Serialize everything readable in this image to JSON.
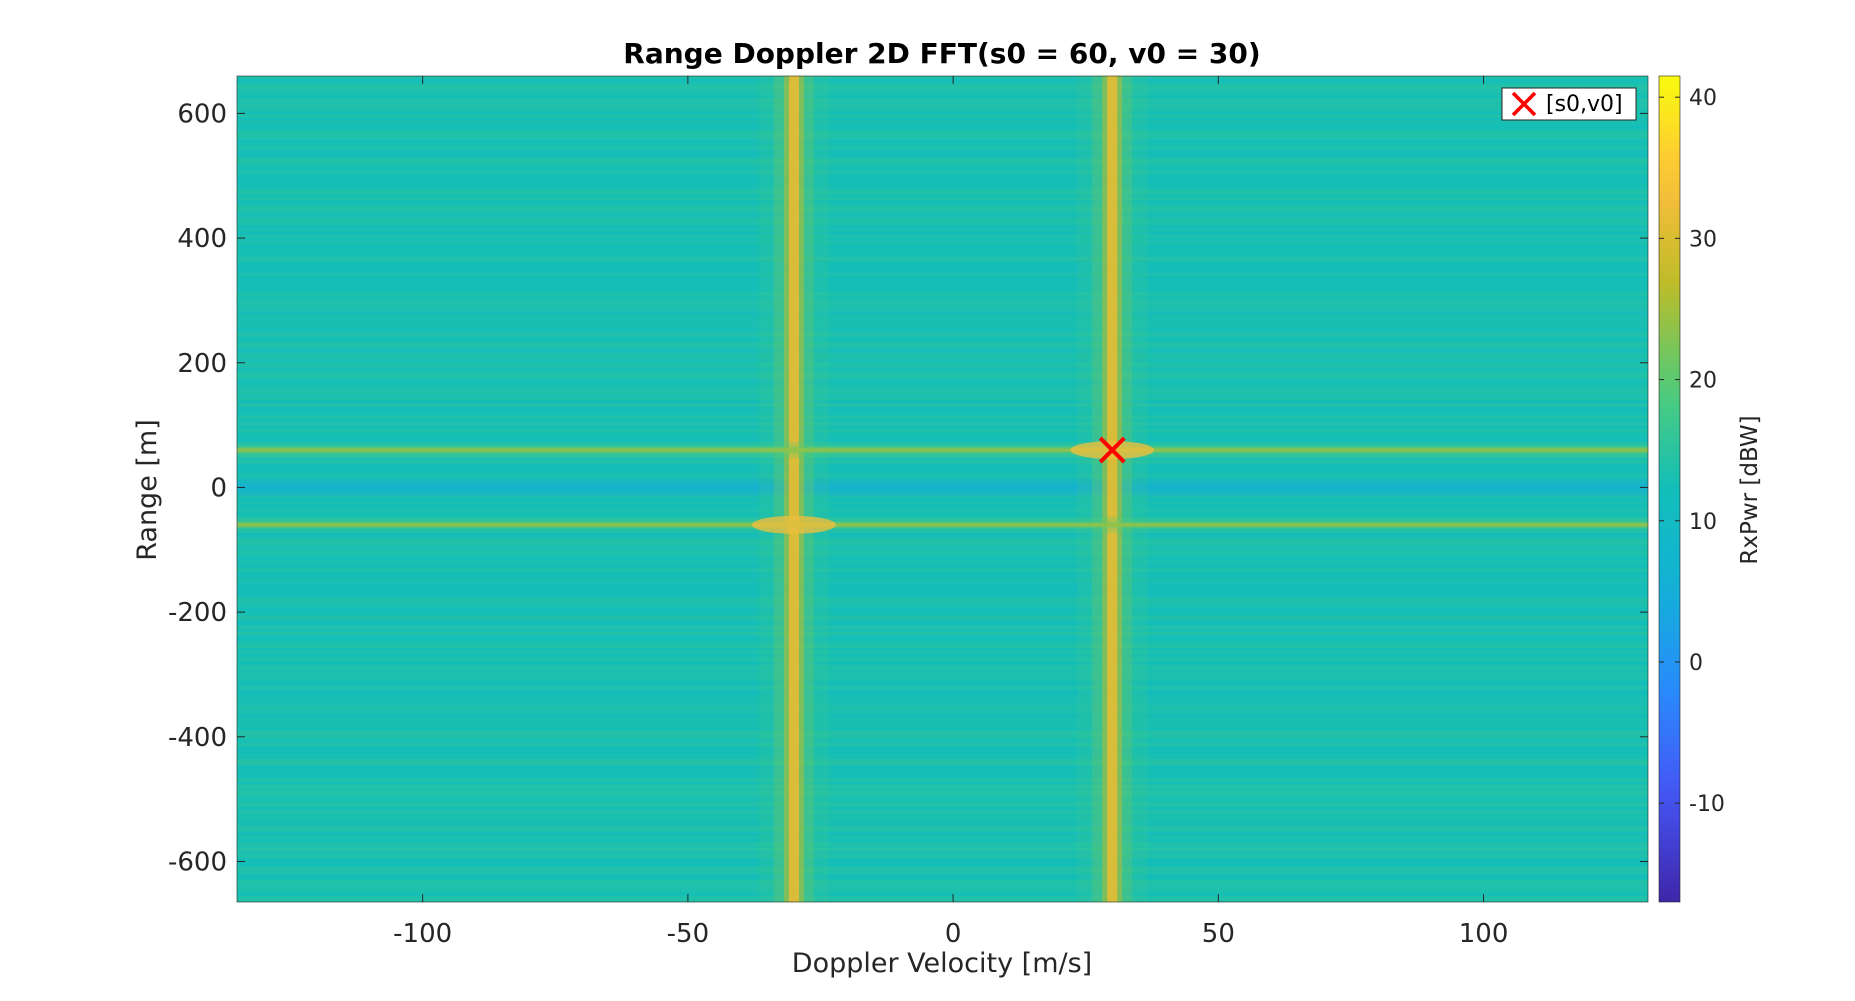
{
  "chart_data": {
    "type": "heatmap",
    "title": "Range Doppler 2D FFT(s0 = 60, v0 = 30)",
    "xlabel": "Doppler Velocity [m/s]",
    "ylabel": "Range [m]",
    "xlim": [
      -135,
      131
    ],
    "ylim": [
      -665,
      660
    ],
    "xticks": [
      -100,
      -50,
      0,
      50,
      100
    ],
    "yticks": [
      -600,
      -400,
      -200,
      0,
      200,
      400,
      600
    ],
    "colorbar": {
      "label": "RxPwr [dBW]",
      "range": [
        -17,
        41.5
      ],
      "ticks": [
        -10,
        0,
        10,
        20,
        30,
        40
      ],
      "colormap": "parula"
    },
    "background_level_dBW": 13,
    "features": [
      {
        "kind": "vertical-ridge",
        "velocity": -30,
        "peak_dBW": 31
      },
      {
        "kind": "vertical-ridge",
        "velocity": 30,
        "peak_dBW": 31
      },
      {
        "kind": "horizontal-ridge",
        "range": 60,
        "peak_dBW": 24
      },
      {
        "kind": "horizontal-ridge",
        "range": -60,
        "peak_dBW": 24
      },
      {
        "kind": "horizontal-notch",
        "range": 0,
        "level_dBW": 5
      }
    ],
    "markers": [
      {
        "name": "[s0,v0]",
        "x": 30,
        "y": 60,
        "symbol": "x",
        "color": "#ff0000"
      }
    ],
    "legend": {
      "position": "top-right",
      "entries": [
        "[s0,v0]"
      ]
    },
    "grid": false
  }
}
